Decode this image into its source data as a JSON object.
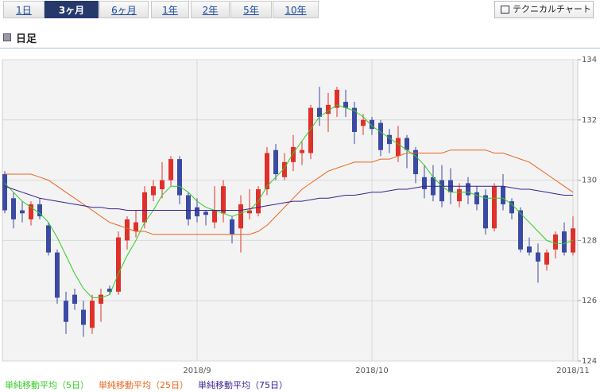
{
  "tabs": [
    "1日",
    "3ヶ月",
    "6ヶ月",
    "1年",
    "2年",
    "5年",
    "10年"
  ],
  "selected_tab": 1,
  "technical_button": "テクニカルチャート",
  "section_title": "日足",
  "chart_data": {
    "type": "candlestick",
    "categories": [
      null,
      null,
      null,
      null,
      null,
      null,
      null,
      null,
      null,
      null,
      null,
      null,
      null,
      null,
      null,
      null,
      null,
      null,
      null,
      null,
      null,
      null,
      "2018/9",
      null,
      null,
      null,
      null,
      null,
      null,
      null,
      null,
      null,
      null,
      null,
      null,
      null,
      null,
      null,
      null,
      null,
      null,
      null,
      "2018/10",
      null,
      null,
      null,
      null,
      null,
      null,
      null,
      null,
      null,
      null,
      null,
      null,
      null,
      null,
      null,
      null,
      null,
      null,
      null,
      null,
      null,
      null,
      "2018/11"
    ],
    "open": [
      130.2,
      129.4,
      129.0,
      128.7,
      129.2,
      128.5,
      127.6,
      126.0,
      126.2,
      125.7,
      125.1,
      125.9,
      126.4,
      126.3,
      128.0,
      128.3,
      128.6,
      129.5,
      129.7,
      130.0,
      130.7,
      129.5,
      129.1,
      128.95,
      128.6,
      128.9,
      128.7,
      128.4,
      128.9,
      128.9,
      129.7,
      131.0,
      130.1,
      130.6,
      130.9,
      130.9,
      132.4,
      132.2,
      132.4,
      132.6,
      132.4,
      131.8,
      132.0,
      131.9,
      131.5,
      130.8,
      131.4,
      131.0,
      130.1,
      130.1,
      130.0,
      130.0,
      129.3,
      129.9,
      129.6,
      129.5,
      128.4,
      129.8,
      129.3,
      129.0,
      127.8,
      127.6,
      127.2,
      127.7,
      128.3,
      127.6
    ],
    "high": [
      130.3,
      129.6,
      129.3,
      129.3,
      129.4,
      128.6,
      127.7,
      126.3,
      126.4,
      126.0,
      126.2,
      126.4,
      126.5,
      128.3,
      128.8,
      129.0,
      129.8,
      130.0,
      130.6,
      130.8,
      130.8,
      129.6,
      129.4,
      129.0,
      129.8,
      130.0,
      128.8,
      129.5,
      129.7,
      129.8,
      131.1,
      131.2,
      130.9,
      131.5,
      131.3,
      132.5,
      133.1,
      132.9,
      133.1,
      133.0,
      132.6,
      132.2,
      132.1,
      132.0,
      131.7,
      131.8,
      131.5,
      131.1,
      130.5,
      130.5,
      130.5,
      130.4,
      129.9,
      130.1,
      129.8,
      129.7,
      129.9,
      130.2,
      129.4,
      129.1,
      128.1,
      127.9,
      127.7,
      128.3,
      128.6,
      128.8
    ],
    "low": [
      128.9,
      128.4,
      128.6,
      128.5,
      128.7,
      127.5,
      125.9,
      124.9,
      125.7,
      124.8,
      124.9,
      125.3,
      126.2,
      126.2,
      127.7,
      128.1,
      128.4,
      129.3,
      129.4,
      129.8,
      129.2,
      128.5,
      128.6,
      128.5,
      128.4,
      128.6,
      127.9,
      127.6,
      128.7,
      128.8,
      129.5,
      130.0,
      130.0,
      130.3,
      130.5,
      130.7,
      131.8,
      131.6,
      132.1,
      132.1,
      131.2,
      131.5,
      131.5,
      130.8,
      130.9,
      130.6,
      130.4,
      129.9,
      129.4,
      129.3,
      129.1,
      129.2,
      129.1,
      129.2,
      129.0,
      128.2,
      128.3,
      129.0,
      128.7,
      127.6,
      127.5,
      126.6,
      127.0,
      127.4,
      127.5,
      127.5
    ],
    "close": [
      129.0,
      128.7,
      128.9,
      129.2,
      128.8,
      127.6,
      126.1,
      125.3,
      125.9,
      125.2,
      126.0,
      126.2,
      126.3,
      128.1,
      128.7,
      128.6,
      129.6,
      129.8,
      130.0,
      130.7,
      129.5,
      128.7,
      128.8,
      128.85,
      129.0,
      129.8,
      128.2,
      129.2,
      129.0,
      129.7,
      130.9,
      130.2,
      130.6,
      131.1,
      131.0,
      132.4,
      132.1,
      132.5,
      133.0,
      132.4,
      131.6,
      132.0,
      131.7,
      131.0,
      131.2,
      131.4,
      131.0,
      130.2,
      129.7,
      129.5,
      129.3,
      129.6,
      129.7,
      129.5,
      129.2,
      128.4,
      129.8,
      129.2,
      128.9,
      127.7,
      127.6,
      127.3,
      127.6,
      128.2,
      127.6,
      128.4
    ],
    "up_color": "#e0302a",
    "down_color": "#3b4aa3",
    "series": [
      {
        "name": "単純移動平均（5日）",
        "color": "#33cc22",
        "values": [
          129.9,
          129.6,
          129.3,
          129.1,
          128.9,
          128.6,
          128.1,
          127.5,
          126.9,
          126.4,
          126.1,
          126.1,
          126.2,
          126.9,
          127.5,
          128.0,
          128.6,
          129.0,
          129.5,
          129.8,
          129.8,
          129.6,
          129.3,
          129.1,
          129.0,
          128.9,
          128.8,
          128.9,
          129.0,
          129.3,
          129.8,
          130.1,
          130.4,
          130.9,
          131.3,
          131.7,
          132.1,
          132.3,
          132.5,
          132.4,
          132.3,
          132.1,
          131.8,
          131.6,
          131.4,
          131.2,
          131.0,
          130.8,
          130.5,
          130.1,
          129.8,
          129.6,
          129.6,
          129.6,
          129.5,
          129.4,
          129.4,
          129.4,
          129.2,
          128.9,
          128.6,
          128.3,
          128.0,
          127.9,
          127.9,
          128.0
        ]
      },
      {
        "name": "単純移動平均（25日）",
        "color": "#e8661c",
        "values": [
          130.2,
          130.2,
          130.2,
          130.2,
          130.1,
          130.0,
          129.8,
          129.6,
          129.4,
          129.2,
          129.0,
          128.8,
          128.6,
          128.5,
          128.4,
          128.3,
          128.3,
          128.2,
          128.2,
          128.2,
          128.2,
          128.2,
          128.2,
          128.2,
          128.2,
          128.2,
          128.2,
          128.2,
          128.2,
          128.3,
          128.5,
          128.8,
          129.1,
          129.4,
          129.7,
          129.9,
          130.1,
          130.3,
          130.4,
          130.5,
          130.6,
          130.6,
          130.6,
          130.7,
          130.7,
          130.8,
          130.9,
          130.9,
          130.9,
          130.9,
          130.9,
          131.0,
          131.0,
          131.0,
          131.0,
          131.0,
          130.9,
          130.9,
          130.8,
          130.7,
          130.6,
          130.4,
          130.2,
          130.0,
          129.8,
          129.6
        ]
      },
      {
        "name": "単純移動平均（75日）",
        "color": "#3b1f8f",
        "values": [
          129.8,
          129.7,
          129.6,
          129.5,
          129.4,
          129.35,
          129.3,
          129.25,
          129.2,
          129.15,
          129.1,
          129.1,
          129.05,
          129.05,
          129.0,
          129.0,
          129.0,
          129.0,
          129.0,
          129.0,
          129.0,
          129.0,
          129.0,
          129.0,
          129.0,
          129.0,
          129.0,
          129.0,
          129.05,
          129.1,
          129.15,
          129.2,
          129.25,
          129.3,
          129.3,
          129.35,
          129.4,
          129.4,
          129.45,
          129.5,
          129.5,
          129.55,
          129.6,
          129.6,
          129.65,
          129.7,
          129.7,
          129.75,
          129.8,
          129.8,
          129.8,
          129.8,
          129.8,
          129.8,
          129.8,
          129.8,
          129.8,
          129.8,
          129.75,
          129.7,
          129.7,
          129.65,
          129.6,
          129.55,
          129.5,
          129.5
        ]
      }
    ],
    "ylim": [
      124,
      134
    ],
    "yticks": [
      124,
      126,
      128,
      130,
      132,
      134
    ],
    "grid": true
  }
}
